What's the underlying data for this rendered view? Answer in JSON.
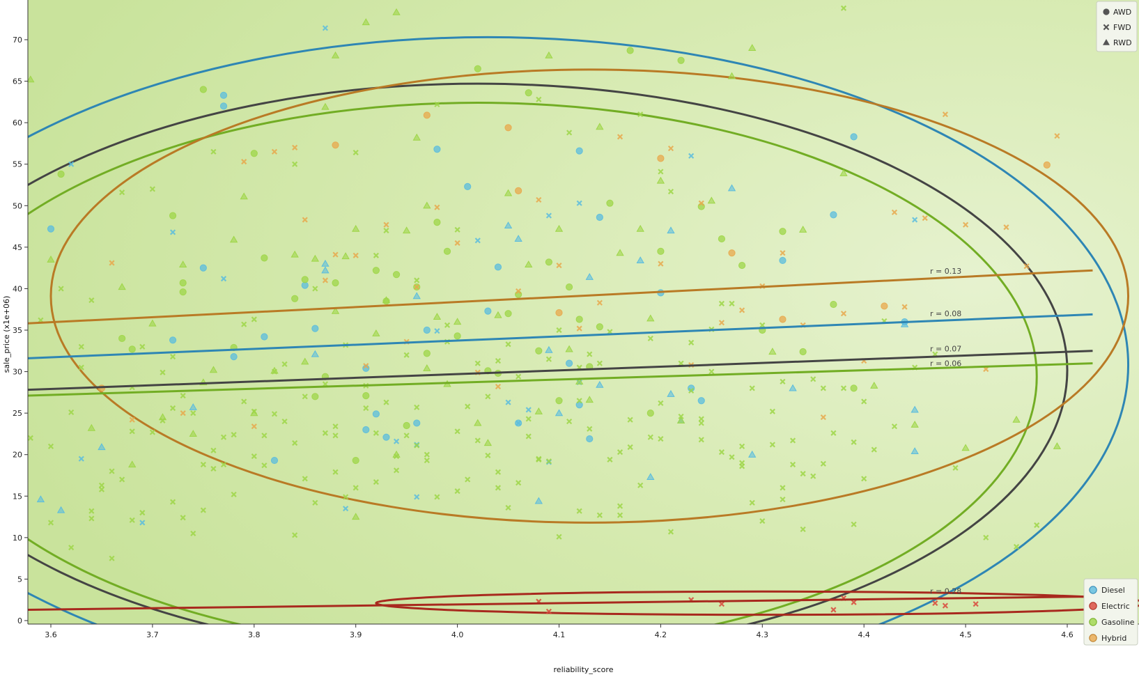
{
  "chart_data": {
    "type": "scatter",
    "xlabel": "reliability_score",
    "ylabel": "sale_price (x1e+06)",
    "xlim": [
      3.575,
      4.625
    ],
    "ylim": [
      -0.5,
      75.0
    ],
    "x_ticks": [
      "3.6",
      "3.7",
      "3.8",
      "3.9",
      "4.0",
      "4.1",
      "4.2",
      "4.3",
      "4.4",
      "4.5",
      "4.6"
    ],
    "y_ticks": [
      "0",
      "5",
      "10",
      "15",
      "20",
      "25",
      "30",
      "35",
      "40",
      "45",
      "50",
      "55",
      "60",
      "65",
      "70"
    ],
    "grid": false,
    "shape_legend": {
      "position": "top-right",
      "items": [
        {
          "label": "AWD",
          "marker": "circle"
        },
        {
          "label": "FWD",
          "marker": "x"
        },
        {
          "label": "RWD",
          "marker": "triangle"
        }
      ]
    },
    "color_legend": {
      "position": "bottom-right",
      "items": [
        {
          "label": "Diesel",
          "color": "#5bbcde"
        },
        {
          "label": "Electric",
          "color": "#d9463b"
        },
        {
          "label": "Gasoline",
          "color": "#9ed648"
        },
        {
          "label": "Hybrid",
          "color": "#e8a84c"
        }
      ]
    },
    "colors": {
      "background": "#d6ebb0",
      "Diesel": "#5bbcde",
      "Diesel_line": "#2e86b4",
      "Electric": "#d9463b",
      "Electric_line": "#a8291e",
      "Gasoline": "#9ed648",
      "Gasoline_line": "#72ad24",
      "Hybrid": "#e8a84c",
      "Hybrid_line": "#b97a25",
      "overall_line": "#444444"
    },
    "regression_lines": [
      {
        "group": "Hybrid",
        "label": "r = 0.13",
        "x": [
          3.575,
          4.625
        ],
        "y": [
          35.8,
          42.2
        ]
      },
      {
        "group": "Diesel",
        "label": "r = 0.08",
        "x": [
          3.575,
          4.625
        ],
        "y": [
          31.6,
          36.9
        ]
      },
      {
        "group": "overall",
        "label": "r = 0.07",
        "x": [
          3.575,
          4.625
        ],
        "y": [
          27.8,
          32.5
        ]
      },
      {
        "group": "Gasoline",
        "label": "r = 0.06",
        "x": [
          3.575,
          4.625
        ],
        "y": [
          27.1,
          31.0
        ]
      },
      {
        "group": "Electric",
        "label": "r = 0.28",
        "x": [
          3.575,
          4.625
        ],
        "y": [
          1.3,
          2.9
        ]
      }
    ],
    "ellipses": [
      {
        "group": "Diesel",
        "cx": 4.03,
        "cy": 30.8,
        "rx": 0.63,
        "ry": 39.5,
        "angle": 0
      },
      {
        "group": "overall",
        "cx": 4.02,
        "cy": 30.2,
        "rx": 0.58,
        "ry": 34.5,
        "angle": 0
      },
      {
        "group": "Gasoline",
        "cx": 4.02,
        "cy": 29.4,
        "rx": 0.55,
        "ry": 33.0,
        "angle": 0
      },
      {
        "group": "Hybrid",
        "cx": 4.13,
        "cy": 39.1,
        "rx": 0.53,
        "ry": 27.3,
        "angle": 0
      },
      {
        "group": "Electric",
        "cx": 4.3,
        "cy": 2.1,
        "rx": 0.38,
        "ry": 1.4,
        "angle": 0
      }
    ],
    "series": [
      {
        "name": "Diesel",
        "marker": "circle",
        "x": [
          3.6,
          3.72,
          3.75,
          3.77,
          3.77,
          3.78,
          3.81,
          3.82,
          3.85,
          3.86,
          3.91,
          3.91,
          3.92,
          3.93,
          3.96,
          3.97,
          3.98,
          4.01,
          4.03,
          4.04,
          4.06,
          4.11,
          4.12,
          4.12,
          4.13,
          4.14,
          4.2,
          4.23,
          4.24,
          4.32,
          4.37,
          4.39,
          4.44
        ],
        "y": [
          47.2,
          33.8,
          42.5,
          63.3,
          62.0,
          31.8,
          34.2,
          19.3,
          40.4,
          35.2,
          30.4,
          23.0,
          24.9,
          22.1,
          23.8,
          35.0,
          56.8,
          52.3,
          37.3,
          42.6,
          23.8,
          31.0,
          26.0,
          56.6,
          21.9,
          48.6,
          39.5,
          28.0,
          26.5,
          43.4,
          48.9,
          58.3,
          36.0
        ]
      },
      {
        "name": "Diesel",
        "marker": "x",
        "x": [
          3.62,
          3.63,
          3.69,
          3.72,
          3.77,
          3.87,
          3.89,
          3.94,
          3.96,
          3.96,
          3.98,
          4.02,
          4.05,
          4.06,
          4.07,
          4.09,
          4.09,
          4.12,
          4.12,
          4.23,
          4.45
        ],
        "y": [
          55.0,
          19.5,
          11.8,
          46.8,
          41.2,
          71.4,
          13.5,
          21.6,
          21.2,
          14.9,
          34.9,
          45.8,
          26.3,
          23.8,
          25.4,
          48.8,
          19.1,
          28.7,
          50.3,
          56.0,
          48.3
        ]
      },
      {
        "name": "Diesel",
        "marker": "triangle",
        "x": [
          3.59,
          3.61,
          3.65,
          3.74,
          3.86,
          3.87,
          3.87,
          3.96,
          4.05,
          4.06,
          4.08,
          4.09,
          4.1,
          4.13,
          4.14,
          4.18,
          4.19,
          4.21,
          4.21,
          4.22,
          4.27,
          4.29,
          4.33,
          4.44,
          4.45,
          4.45
        ],
        "y": [
          14.6,
          13.3,
          20.9,
          25.7,
          32.1,
          43.0,
          42.2,
          39.1,
          47.6,
          46.0,
          14.4,
          32.6,
          25.0,
          41.4,
          28.4,
          43.4,
          17.3,
          47.0,
          27.3,
          24.1,
          52.1,
          20.0,
          28.0,
          35.7,
          25.4,
          20.4
        ]
      },
      {
        "name": "Electric",
        "marker": "x",
        "x": [
          4.08,
          4.09,
          4.23,
          4.26,
          4.37,
          4.38,
          4.39,
          4.47,
          4.48,
          4.51
        ],
        "y": [
          2.3,
          1.1,
          2.5,
          2.0,
          1.3,
          2.7,
          2.2,
          2.1,
          1.8,
          2.0
        ]
      },
      {
        "name": "Gasoline",
        "marker": "circle",
        "x": [
          3.61,
          3.67,
          3.68,
          3.72,
          3.73,
          3.73,
          3.75,
          3.78,
          3.8,
          3.81,
          3.84,
          3.85,
          3.86,
          3.87,
          3.88,
          3.9,
          3.91,
          3.92,
          3.93,
          3.94,
          3.95,
          3.96,
          3.97,
          3.98,
          3.99,
          4.0,
          4.02,
          4.03,
          4.04,
          4.05,
          4.06,
          4.07,
          4.08,
          4.09,
          4.1,
          4.11,
          4.12,
          4.13,
          4.14,
          4.15,
          4.17,
          4.19,
          4.2,
          4.22,
          4.24,
          4.26,
          4.28,
          4.3,
          4.32,
          4.34,
          4.37,
          4.39
        ],
        "y": [
          53.8,
          34.0,
          32.7,
          48.8,
          40.7,
          39.6,
          64.0,
          32.9,
          56.3,
          43.7,
          38.8,
          41.1,
          27.0,
          29.4,
          40.7,
          19.3,
          27.1,
          42.2,
          38.5,
          41.7,
          23.5,
          40.2,
          32.2,
          48.0,
          44.5,
          34.3,
          66.5,
          30.1,
          29.8,
          37.0,
          39.3,
          63.6,
          32.5,
          43.2,
          26.5,
          40.2,
          36.3,
          30.6,
          35.4,
          50.3,
          68.7,
          25.0,
          44.5,
          67.5,
          49.9,
          46.0,
          42.8,
          35.0,
          46.9,
          32.4,
          38.1,
          28.0
        ]
      },
      {
        "name": "Gasoline",
        "marker": "x",
        "x": [
          3.58,
          3.59,
          3.6,
          3.61,
          3.62,
          3.63,
          3.64,
          3.65,
          3.66,
          3.67,
          3.68,
          3.69,
          3.7,
          3.71,
          3.72,
          3.73,
          3.74,
          3.75,
          3.76,
          3.77,
          3.78,
          3.79,
          3.8,
          3.81,
          3.82,
          3.83,
          3.84,
          3.85,
          3.86,
          3.87,
          3.88,
          3.89,
          3.9,
          3.91,
          3.92,
          3.93,
          3.94,
          3.95,
          3.96,
          3.97,
          3.98,
          3.99,
          4.0,
          4.01,
          4.02,
          4.03,
          4.04,
          4.05,
          4.06,
          4.07,
          4.08,
          4.09,
          4.1,
          4.11,
          4.12,
          4.13,
          4.14,
          4.15,
          4.16,
          4.17,
          4.18,
          4.19,
          4.2,
          4.21,
          4.22,
          4.23,
          4.24,
          4.25,
          4.26,
          4.27,
          4.28,
          4.29,
          4.3,
          4.31,
          4.32,
          4.33,
          4.34,
          4.35,
          4.36,
          4.37,
          4.38,
          4.39,
          4.4,
          4.41,
          4.42,
          4.43,
          4.45,
          4.47,
          4.49,
          4.52,
          4.55,
          4.57,
          3.63,
          3.67,
          3.71,
          3.75,
          3.79,
          3.83,
          3.87,
          3.91,
          3.95,
          3.99,
          4.03,
          4.07,
          4.11,
          4.15,
          4.19,
          4.23,
          4.27,
          4.31,
          4.35,
          4.39,
          3.64,
          3.68,
          3.72,
          3.76,
          3.8,
          3.84,
          3.88,
          3.92,
          3.96,
          4.0,
          4.04,
          4.08,
          4.12,
          4.16,
          4.2,
          4.24,
          4.28,
          4.32,
          3.62,
          3.66,
          3.7,
          3.74,
          3.78,
          3.82,
          3.86,
          3.9,
          3.94,
          3.98,
          4.02,
          4.06,
          4.1,
          4.14,
          4.18,
          4.22,
          4.26,
          4.3,
          4.34,
          4.38,
          3.65,
          3.69,
          3.73,
          3.77,
          3.81,
          3.85,
          3.89,
          3.93,
          3.97,
          4.01,
          4.05,
          4.09,
          4.13,
          4.17,
          4.21,
          4.25,
          4.29,
          4.33,
          3.6,
          3.68,
          3.76,
          3.84,
          3.92,
          4.0,
          4.08,
          4.16,
          4.24,
          4.32,
          4.4,
          3.64,
          3.72,
          3.8,
          3.88,
          3.96,
          4.04,
          4.12,
          4.2,
          4.28,
          4.36
        ],
        "y": [
          22.0,
          36.2,
          21.0,
          40.0,
          8.8,
          33.0,
          38.6,
          15.8,
          7.5,
          51.6,
          28.1,
          33.0,
          52.0,
          24.1,
          31.8,
          12.4,
          25.0,
          13.3,
          56.5,
          18.8,
          22.4,
          35.7,
          36.3,
          22.3,
          30.0,
          30.9,
          55.0,
          27.0,
          40.0,
          28.5,
          23.4,
          33.2,
          56.4,
          28.3,
          44.0,
          47.0,
          19.8,
          32.0,
          41.0,
          20.0,
          62.2,
          33.6,
          47.1,
          17.0,
          31.0,
          27.0,
          31.3,
          33.3,
          29.4,
          22.2,
          62.8,
          31.5,
          35.0,
          58.8,
          30.5,
          32.1,
          31.0,
          19.4,
          13.8,
          20.9,
          61.0,
          34.0,
          54.1,
          51.7,
          31.0,
          27.7,
          21.8,
          35.1,
          38.2,
          38.2,
          18.6,
          14.2,
          35.6,
          25.2,
          28.8,
          18.8,
          17.7,
          17.4,
          28.0,
          22.6,
          73.8,
          11.6,
          26.4,
          20.6,
          36.1,
          23.4,
          30.5,
          32.1,
          18.4,
          10.0,
          8.9,
          11.5,
          30.5,
          17.0,
          29.9,
          18.8,
          26.4,
          24.0,
          22.6,
          25.6,
          22.3,
          35.6,
          19.9,
          24.3,
          24.0,
          34.8,
          22.1,
          33.5,
          19.7,
          21.2,
          29.1,
          21.5,
          12.3,
          22.8,
          25.6,
          20.5,
          25.2,
          21.4,
          17.9,
          22.6,
          21.1,
          22.8,
          16.0,
          19.5,
          26.5,
          20.3,
          21.9,
          24.3,
          19.0,
          14.6,
          25.1,
          18.0,
          22.7,
          10.5,
          15.2,
          24.9,
          14.2,
          16.0,
          18.1,
          14.9,
          21.7,
          16.6,
          10.1,
          12.7,
          16.3,
          24.6,
          20.3,
          12.0,
          11.0,
          28.0,
          16.3,
          13.0,
          27.1,
          22.1,
          18.7,
          17.1,
          14.9,
          26.3,
          19.3,
          25.8,
          13.6,
          19.2,
          23.1,
          24.2,
          10.7,
          30.0,
          28.0,
          21.7,
          11.8,
          12.1,
          18.3,
          10.3,
          16.7,
          15.6,
          19.4,
          12.7,
          23.8,
          16.0,
          17.1,
          13.2,
          14.3,
          19.8,
          22.3,
          25.7,
          17.9,
          13.2,
          26.2,
          21.0,
          18.9
        ]
      },
      {
        "name": "Gasoline",
        "marker": "triangle",
        "x": [
          3.58,
          3.6,
          3.64,
          3.67,
          3.68,
          3.7,
          3.71,
          3.73,
          3.74,
          3.75,
          3.76,
          3.78,
          3.79,
          3.8,
          3.82,
          3.84,
          3.85,
          3.86,
          3.87,
          3.88,
          3.89,
          3.9,
          3.91,
          3.92,
          3.93,
          3.94,
          3.95,
          3.96,
          3.97,
          3.98,
          3.99,
          4.0,
          4.02,
          4.04,
          4.05,
          4.07,
          4.09,
          4.1,
          4.11,
          4.12,
          4.14,
          4.16,
          4.18,
          4.2,
          4.22,
          4.25,
          4.27,
          4.29,
          4.31,
          4.34,
          4.38,
          4.41,
          4.45,
          4.5,
          4.55,
          4.59,
          3.88,
          3.9,
          3.94,
          3.97,
          4.03,
          4.08,
          4.13,
          4.19
        ],
        "y": [
          65.2,
          43.5,
          23.2,
          40.2,
          18.8,
          35.8,
          24.5,
          42.9,
          22.5,
          28.7,
          30.2,
          45.9,
          51.1,
          25.0,
          30.1,
          44.1,
          31.2,
          43.6,
          61.9,
          68.1,
          43.9,
          12.5,
          72.1,
          34.6,
          38.6,
          73.3,
          47.0,
          58.2,
          50.0,
          36.6,
          28.5,
          36.0,
          23.8,
          36.8,
          51.5,
          42.9,
          68.1,
          47.2,
          32.7,
          28.8,
          59.5,
          44.3,
          47.2,
          53.0,
          24.1,
          50.6,
          65.6,
          69.0,
          32.4,
          47.1,
          53.9,
          28.3,
          23.6,
          20.8,
          24.2,
          21.0,
          37.3,
          47.2,
          20.0,
          30.4,
          21.4,
          25.2,
          26.6,
          36.4
        ]
      },
      {
        "name": "Hybrid",
        "marker": "circle",
        "x": [
          3.65,
          3.88,
          3.97,
          4.05,
          4.06,
          4.1,
          4.2,
          4.27,
          4.32,
          4.42,
          4.58
        ],
        "y": [
          28.0,
          57.3,
          60.9,
          59.4,
          51.8,
          37.1,
          55.7,
          44.3,
          36.3,
          37.9,
          54.9
        ]
      },
      {
        "name": "Hybrid",
        "marker": "x",
        "x": [
          3.66,
          3.68,
          3.73,
          3.79,
          3.8,
          3.82,
          3.84,
          3.85,
          3.87,
          3.88,
          3.9,
          3.91,
          3.93,
          3.95,
          3.96,
          3.98,
          4.0,
          4.02,
          4.04,
          4.06,
          4.08,
          4.1,
          4.12,
          4.14,
          4.16,
          4.2,
          4.21,
          4.23,
          4.24,
          4.26,
          4.28,
          4.3,
          4.32,
          4.34,
          4.36,
          4.38,
          4.4,
          4.43,
          4.44,
          4.46,
          4.48,
          4.5,
          4.52,
          4.54,
          4.56,
          4.59
        ],
        "y": [
          43.1,
          24.2,
          25.0,
          55.3,
          23.4,
          56.5,
          57.0,
          48.3,
          41.0,
          44.1,
          44.0,
          30.7,
          47.7,
          33.6,
          40.2,
          49.8,
          45.5,
          29.9,
          28.2,
          39.7,
          50.7,
          42.8,
          35.2,
          38.3,
          58.3,
          43.0,
          56.9,
          30.8,
          50.3,
          35.9,
          37.4,
          40.3,
          44.3,
          35.6,
          24.5,
          37.0,
          31.3,
          49.2,
          37.8,
          48.5,
          61.0,
          47.7,
          30.3,
          47.4,
          42.7,
          58.4
        ]
      }
    ]
  }
}
